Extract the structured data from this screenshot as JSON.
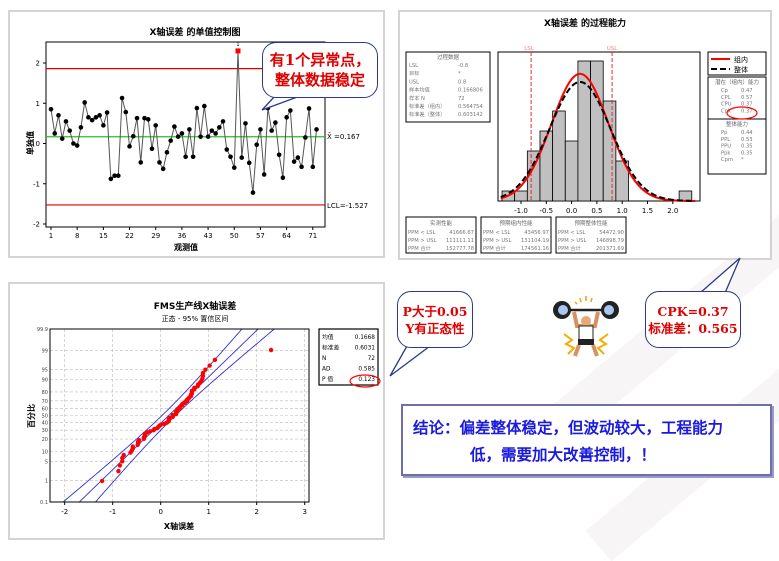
{
  "colors": {
    "control_limit": "#e00000",
    "center_line": "#22c022",
    "data_line": "#000000",
    "out_of_control": "#ff0000",
    "hist_bar": "#c0c0c0",
    "fit_within": "#ff0000",
    "fit_overall": "#000000",
    "prob_points": "#ff0000",
    "prob_lines": "#3030e0",
    "callout_text": "#e00000",
    "conclusion_text": "#1a1adc"
  },
  "chart_data": [
    {
      "type": "line",
      "title": "X轴误差 的单值控制图",
      "xlabel": "观测值",
      "ylabel": "单独值",
      "ylim": [
        -2.1,
        2.5
      ],
      "xticks": [
        1,
        8,
        15,
        22,
        29,
        36,
        43,
        50,
        57,
        64,
        71
      ],
      "yticks": [
        -2,
        -1,
        0,
        1,
        2
      ],
      "center_label": "X̄ =0.167",
      "center": 0.167,
      "lcl_label": "LCL=-1.527",
      "lcl": -1.527,
      "ucl": 1.861,
      "out_of_control_point": 51,
      "out_of_control_flag": "1",
      "values": [
        0.85,
        0.25,
        0.7,
        0.12,
        0.55,
        0.32,
        0.0,
        -0.05,
        0.4,
        1.02,
        0.65,
        0.58,
        0.65,
        0.7,
        0.45,
        0.77,
        -0.88,
        -0.8,
        -0.8,
        1.13,
        0.78,
        -0.07,
        0.18,
        0.63,
        -0.47,
        0.63,
        0.6,
        -0.13,
        0.45,
        -0.47,
        -0.63,
        -0.22,
        0.07,
        0.42,
        0.17,
        0.25,
        -0.33,
        0.35,
        -0.33,
        0.88,
        0.17,
        0.93,
        0.17,
        0.32,
        0.25,
        0.4,
        0.55,
        -0.15,
        -0.33,
        -0.6,
        2.3,
        -0.35,
        0.5,
        -0.48,
        -1.22,
        -0.03,
        0.35,
        -0.77,
        0.88,
        0.32,
        0.52,
        -0.28,
        -0.85,
        0.65,
        0.82,
        -0.45,
        -0.35,
        -0.58,
        0.15,
        0.87,
        -0.58,
        0.35
      ]
    },
    {
      "type": "bar",
      "title": "X轴误差 的过程能力",
      "lsl_label": "LSL",
      "usl_label": "USL",
      "lsl": -0.8,
      "usl": 0.8,
      "xticks": [
        "-1.0",
        "-0.5",
        "0.0",
        "0.5",
        "1.0",
        "1.5",
        "2.0"
      ],
      "xlim": [
        -1.4,
        2.45
      ],
      "ylim": [
        0,
        15
      ],
      "bin_start": -1.375,
      "bin_width": 0.25,
      "counts": [
        1,
        1,
        5,
        7,
        9,
        6,
        14,
        14,
        10,
        4,
        0,
        0,
        0,
        0,
        1
      ],
      "mean": 0.1668,
      "sd_within": 0.564754,
      "sd_overall": 0.603142,
      "n": 72,
      "legend": [
        {
          "name": "组内",
          "style": "solid"
        },
        {
          "name": "整体",
          "style": "dashed"
        }
      ],
      "process_data": {
        "title": "过程数据",
        "rows": [
          [
            "LSL",
            "-0.8"
          ],
          [
            "目标",
            "*"
          ],
          [
            "USL",
            "0.8"
          ],
          [
            "样本均值",
            "0.166806"
          ],
          [
            "样本 N",
            "72"
          ],
          [
            "标准差（组内）",
            "0.564754"
          ],
          [
            "标准差（整体）",
            "0.603142"
          ]
        ]
      },
      "potential": {
        "title": "潜在（组内）能力",
        "rows": [
          [
            "Cp",
            "0.47"
          ],
          [
            "CPL",
            "0.57"
          ],
          [
            "CPU",
            "0.37"
          ],
          [
            "Cpk",
            "0.37"
          ]
        ]
      },
      "overall": {
        "title": "整体能力",
        "rows": [
          [
            "Pp",
            "0.44"
          ],
          [
            "PPL",
            "0.53"
          ],
          [
            "PPU",
            "0.35"
          ],
          [
            "Ppk",
            "0.35"
          ],
          [
            "Cpm",
            "*"
          ]
        ]
      },
      "performance": [
        {
          "title": "实测性能",
          "rows": [
            [
              "PPM < LSL",
              "41666.67"
            ],
            [
              "PPM > USL",
              "111111.11"
            ],
            [
              "PPM 合计",
              "152777.78"
            ]
          ]
        },
        {
          "title": "预期组内性能",
          "rows": [
            [
              "PPM < LSL",
              "43456.97"
            ],
            [
              "PPM > USL",
              "131104.19"
            ],
            [
              "PPM 合计",
              "174561.16"
            ]
          ]
        },
        {
          "title": "预期整体性能",
          "rows": [
            [
              "PPM < LSL",
              "54472.90"
            ],
            [
              "PPM > USL",
              "146898.79"
            ],
            [
              "PPM 合计",
              "201371.69"
            ]
          ]
        }
      ]
    },
    {
      "type": "scatter",
      "title": "FMS生产线X轴误差",
      "subtitle": "正态 - 95% 置信区间",
      "xlabel": "X轴误差",
      "ylabel": "百分比",
      "xlim": [
        -2.25,
        3.05
      ],
      "xticks": [
        "-2",
        "-1",
        "0",
        "1",
        "2",
        "3"
      ],
      "yticks": [
        "0.1",
        "1",
        "5",
        "10",
        "20",
        "30",
        "40",
        "50",
        "60",
        "70",
        "80",
        "90",
        "95",
        "99",
        "99.9"
      ],
      "confidence": 0.95,
      "stats": [
        [
          "均值",
          "0.1668"
        ],
        [
          "标准差",
          "0.6031"
        ],
        [
          "N",
          "72"
        ],
        [
          "AD",
          "0.585"
        ],
        [
          "P 值",
          "0.123"
        ]
      ]
    }
  ],
  "callouts": {
    "control_chart": [
      "有1个异常点，",
      "整体数据稳定"
    ],
    "normality": [
      "P大于0.05",
      "Y有正态性"
    ],
    "capability": [
      "CPK=0.37",
      "标准差：0.565"
    ]
  },
  "illustration": {
    "icon": "weightlifter-icon"
  },
  "conclusion": {
    "line1": "结论：偏差整体稳定，但波动较大，工程能力",
    "line2": "低，需要加大改善控制，！"
  }
}
